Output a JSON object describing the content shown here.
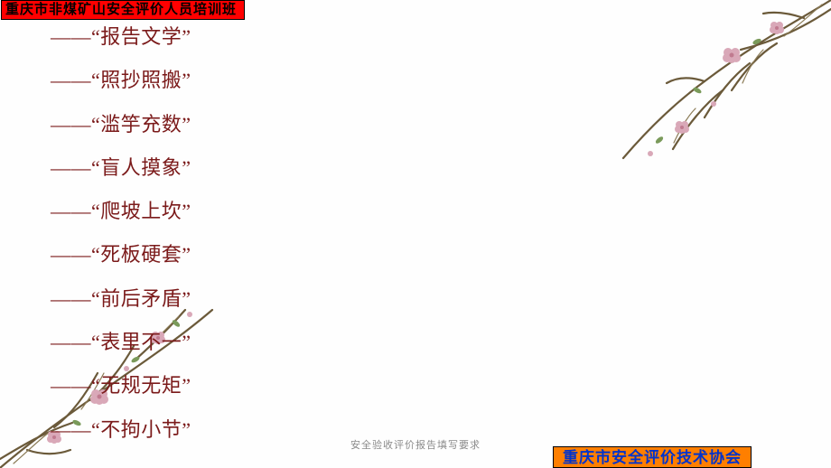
{
  "header": {
    "title": "重庆市非煤矿山安全评价人员培训班",
    "bg_color": "#ff0000",
    "text_color": "#000000",
    "border_color": "#000000",
    "font_size": 15
  },
  "list": {
    "prefix": "——",
    "quote_open": "“",
    "quote_close": "”",
    "text_color": "#7b1a1a",
    "font_size": 22,
    "items": [
      "报告文学",
      "照抄照搬",
      "滥竽充数",
      "盲人摸象",
      "爬坡上坎",
      "死板硬套",
      "前后矛盾",
      "表里不一",
      "无规无矩",
      "不拘小节"
    ]
  },
  "footer_caption": {
    "text": "安全验收评价报告填写要求",
    "text_color": "#8a8a8a",
    "font_size": 11
  },
  "footer_box": {
    "text": "重庆市安全评价技术协会",
    "bg_color": "#ff7f00",
    "text_color": "#0033cc",
    "border_color": "#000000",
    "font_size": 17
  },
  "decor": {
    "branch_stroke": "#6b5a3a",
    "branch_stroke_2": "#8a7a55",
    "blossom_fill": "#d9a8b8",
    "blossom_center": "#c07a8f",
    "leaf_fill": "#7a9a5a"
  }
}
